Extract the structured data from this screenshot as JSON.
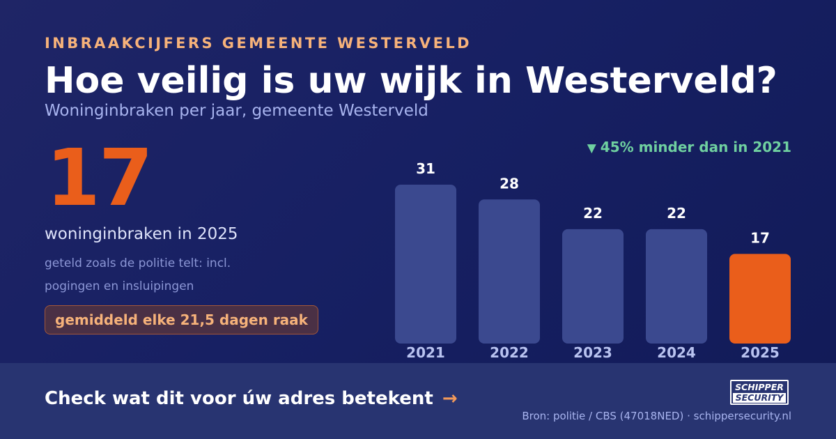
{
  "eyebrow": "INBRAAKCIJFERS GEMEENTE WESTERVELD",
  "title": "Hoe veilig is uw wijk in Westerveld?",
  "subtitle": "Woninginbraken per jaar, gemeente Westerveld",
  "highlight": {
    "number": "17",
    "label": "woninginbraken in 2025",
    "note": "geteld zoals de politie telt: incl. pogingen en insluipingen",
    "badge": "gemiddeld elke 21,5 dagen raak"
  },
  "delta": {
    "arrow": "▼",
    "text": "45% minder dan in 2021",
    "color": "#6fd0a0"
  },
  "chart_data": {
    "type": "bar",
    "categories": [
      "2021",
      "2022",
      "2023",
      "2024",
      "2025"
    ],
    "values": [
      31,
      28,
      22,
      22,
      17
    ],
    "highlight_category": "2025",
    "colors": {
      "bar": "#3b498f",
      "highlight": "#ea5e1b"
    },
    "title": "",
    "xlabel": "",
    "ylabel": "",
    "ylim": [
      0,
      31
    ],
    "grid": false,
    "data_labels": true
  },
  "footer": {
    "cta": "Check wat dit voor úw adres betekent",
    "cta_arrow": "→",
    "logo_line1": "SCHIPPER",
    "logo_line2": "SECURITY",
    "source": "Bron: politie / CBS (47018NED) · schippersecurity.nl"
  },
  "colors": {
    "background": "#172063",
    "accent": "#ea5e1b",
    "eyebrow": "#f6b27a"
  }
}
